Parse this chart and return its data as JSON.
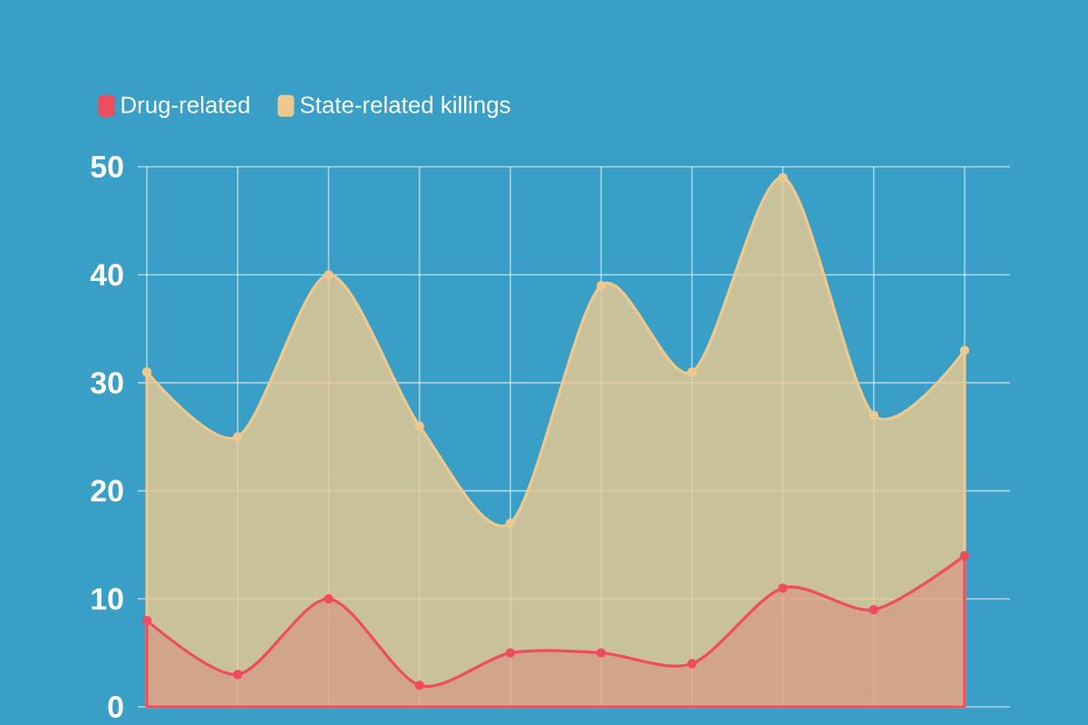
{
  "chart_data": {
    "type": "area",
    "categories": [
      null,
      null,
      null,
      null,
      null,
      null,
      null,
      null,
      null,
      null
    ],
    "series": [
      {
        "name": "Drug-related",
        "color": "#ee4d5e",
        "values": [
          8,
          3,
          10,
          2,
          5,
          5,
          4,
          11,
          9,
          14
        ]
      },
      {
        "name": "State-related killings",
        "color": "#eec98f",
        "values": [
          31,
          25,
          40,
          26,
          17,
          39,
          31,
          49,
          27,
          33
        ]
      }
    ],
    "ylim": [
      0,
      50
    ],
    "yticks": [
      0,
      10,
      20,
      30,
      40,
      50
    ],
    "grid": true,
    "legend": "top left",
    "marker": "circle",
    "tick_labels": "y"
  }
}
